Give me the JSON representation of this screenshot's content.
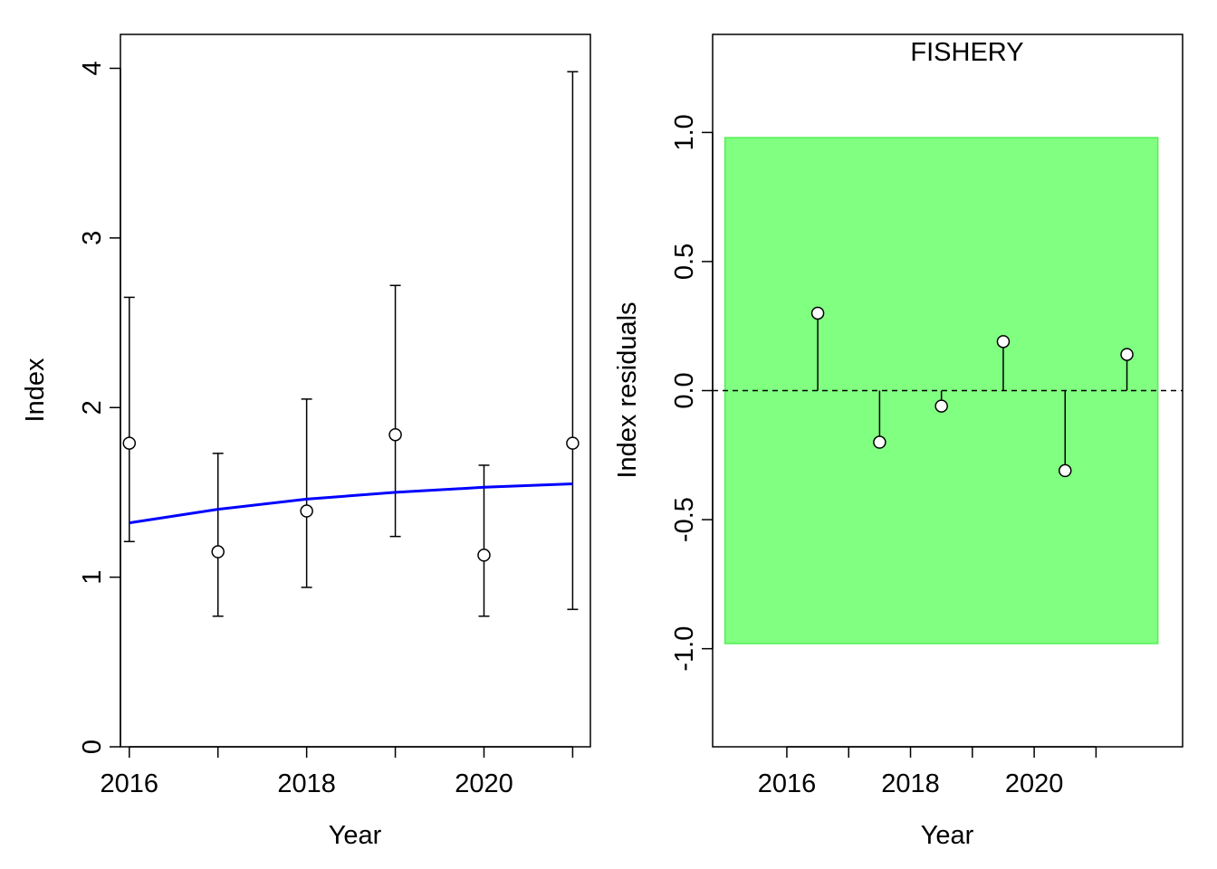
{
  "chart_data": [
    {
      "type": "scatter",
      "panel": "left",
      "title": "",
      "xlabel": "Year",
      "ylabel": "Index",
      "xlim": [
        2015.9,
        2021.2
      ],
      "ylim": [
        0,
        4.2
      ],
      "x_ticks": [
        2016,
        2017,
        2018,
        2019,
        2020,
        2021
      ],
      "x_tick_labels": [
        "2016",
        "",
        "2018",
        "",
        "2020",
        ""
      ],
      "y_ticks": [
        0,
        1,
        2,
        3,
        4
      ],
      "y_tick_labels": [
        "0",
        "1",
        "2",
        "3",
        "4"
      ],
      "observed": {
        "x": [
          2016,
          2017,
          2018,
          2019,
          2020,
          2021
        ],
        "y": [
          1.79,
          1.15,
          1.39,
          1.84,
          1.13,
          1.79
        ],
        "lower": [
          1.21,
          0.77,
          0.94,
          1.24,
          0.77,
          0.81
        ],
        "upper": [
          2.65,
          1.73,
          2.05,
          2.72,
          1.66,
          3.98
        ]
      },
      "fitted": {
        "color": "#0000ff",
        "x": [
          2016,
          2017,
          2018,
          2019,
          2020,
          2021
        ],
        "y": [
          1.32,
          1.4,
          1.46,
          1.5,
          1.53,
          1.55
        ]
      }
    },
    {
      "type": "scatter",
      "panel": "right",
      "title": "FISHERY",
      "xlabel": "Year",
      "ylabel": "Index residuals",
      "xlim": [
        2014.8,
        2022.4
      ],
      "ylim": [
        -1.38,
        1.38
      ],
      "x_ticks": [
        2016,
        2017,
        2018,
        2019,
        2020,
        2021
      ],
      "x_tick_labels": [
        "2016",
        "",
        "2018",
        "",
        "2020",
        ""
      ],
      "y_ticks": [
        -1.0,
        -0.5,
        0.0,
        0.5,
        1.0
      ],
      "y_tick_labels": [
        "-1.0",
        "-0.5",
        "0.0",
        "0.5",
        "1.0"
      ],
      "band": {
        "lower": -0.98,
        "upper": 0.98,
        "xmin": 2015.0,
        "xmax": 2022.0,
        "color": "#80ff80"
      },
      "reference_line": 0.0,
      "residuals": {
        "x": [
          2016.5,
          2017.5,
          2018.5,
          2019.5,
          2020.5,
          2021.5
        ],
        "y": [
          0.3,
          -0.2,
          -0.06,
          0.19,
          -0.31,
          0.14
        ]
      }
    }
  ]
}
